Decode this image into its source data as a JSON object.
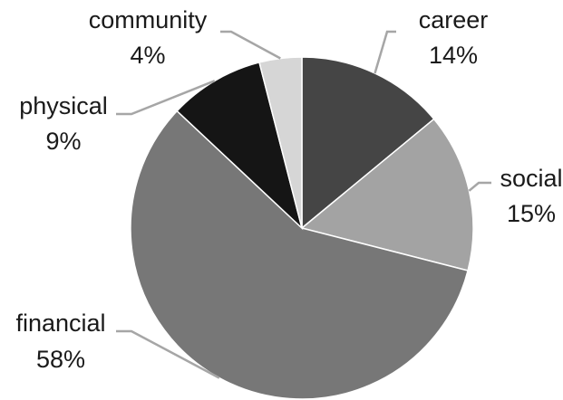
{
  "chart_data": {
    "type": "pie",
    "title": "",
    "legend": "none",
    "slices": [
      {
        "label": "career",
        "value": 14,
        "value_text": "14%",
        "color": "#454545"
      },
      {
        "label": "social",
        "value": 15,
        "value_text": "15%",
        "color": "#a3a3a3"
      },
      {
        "label": "financial",
        "value": 58,
        "value_text": "58%",
        "color": "#777777"
      },
      {
        "label": "physical",
        "value": 9,
        "value_text": "9%",
        "color": "#151515"
      },
      {
        "label": "community",
        "value": 4,
        "value_text": "4%",
        "color": "#d6d6d6"
      }
    ]
  }
}
